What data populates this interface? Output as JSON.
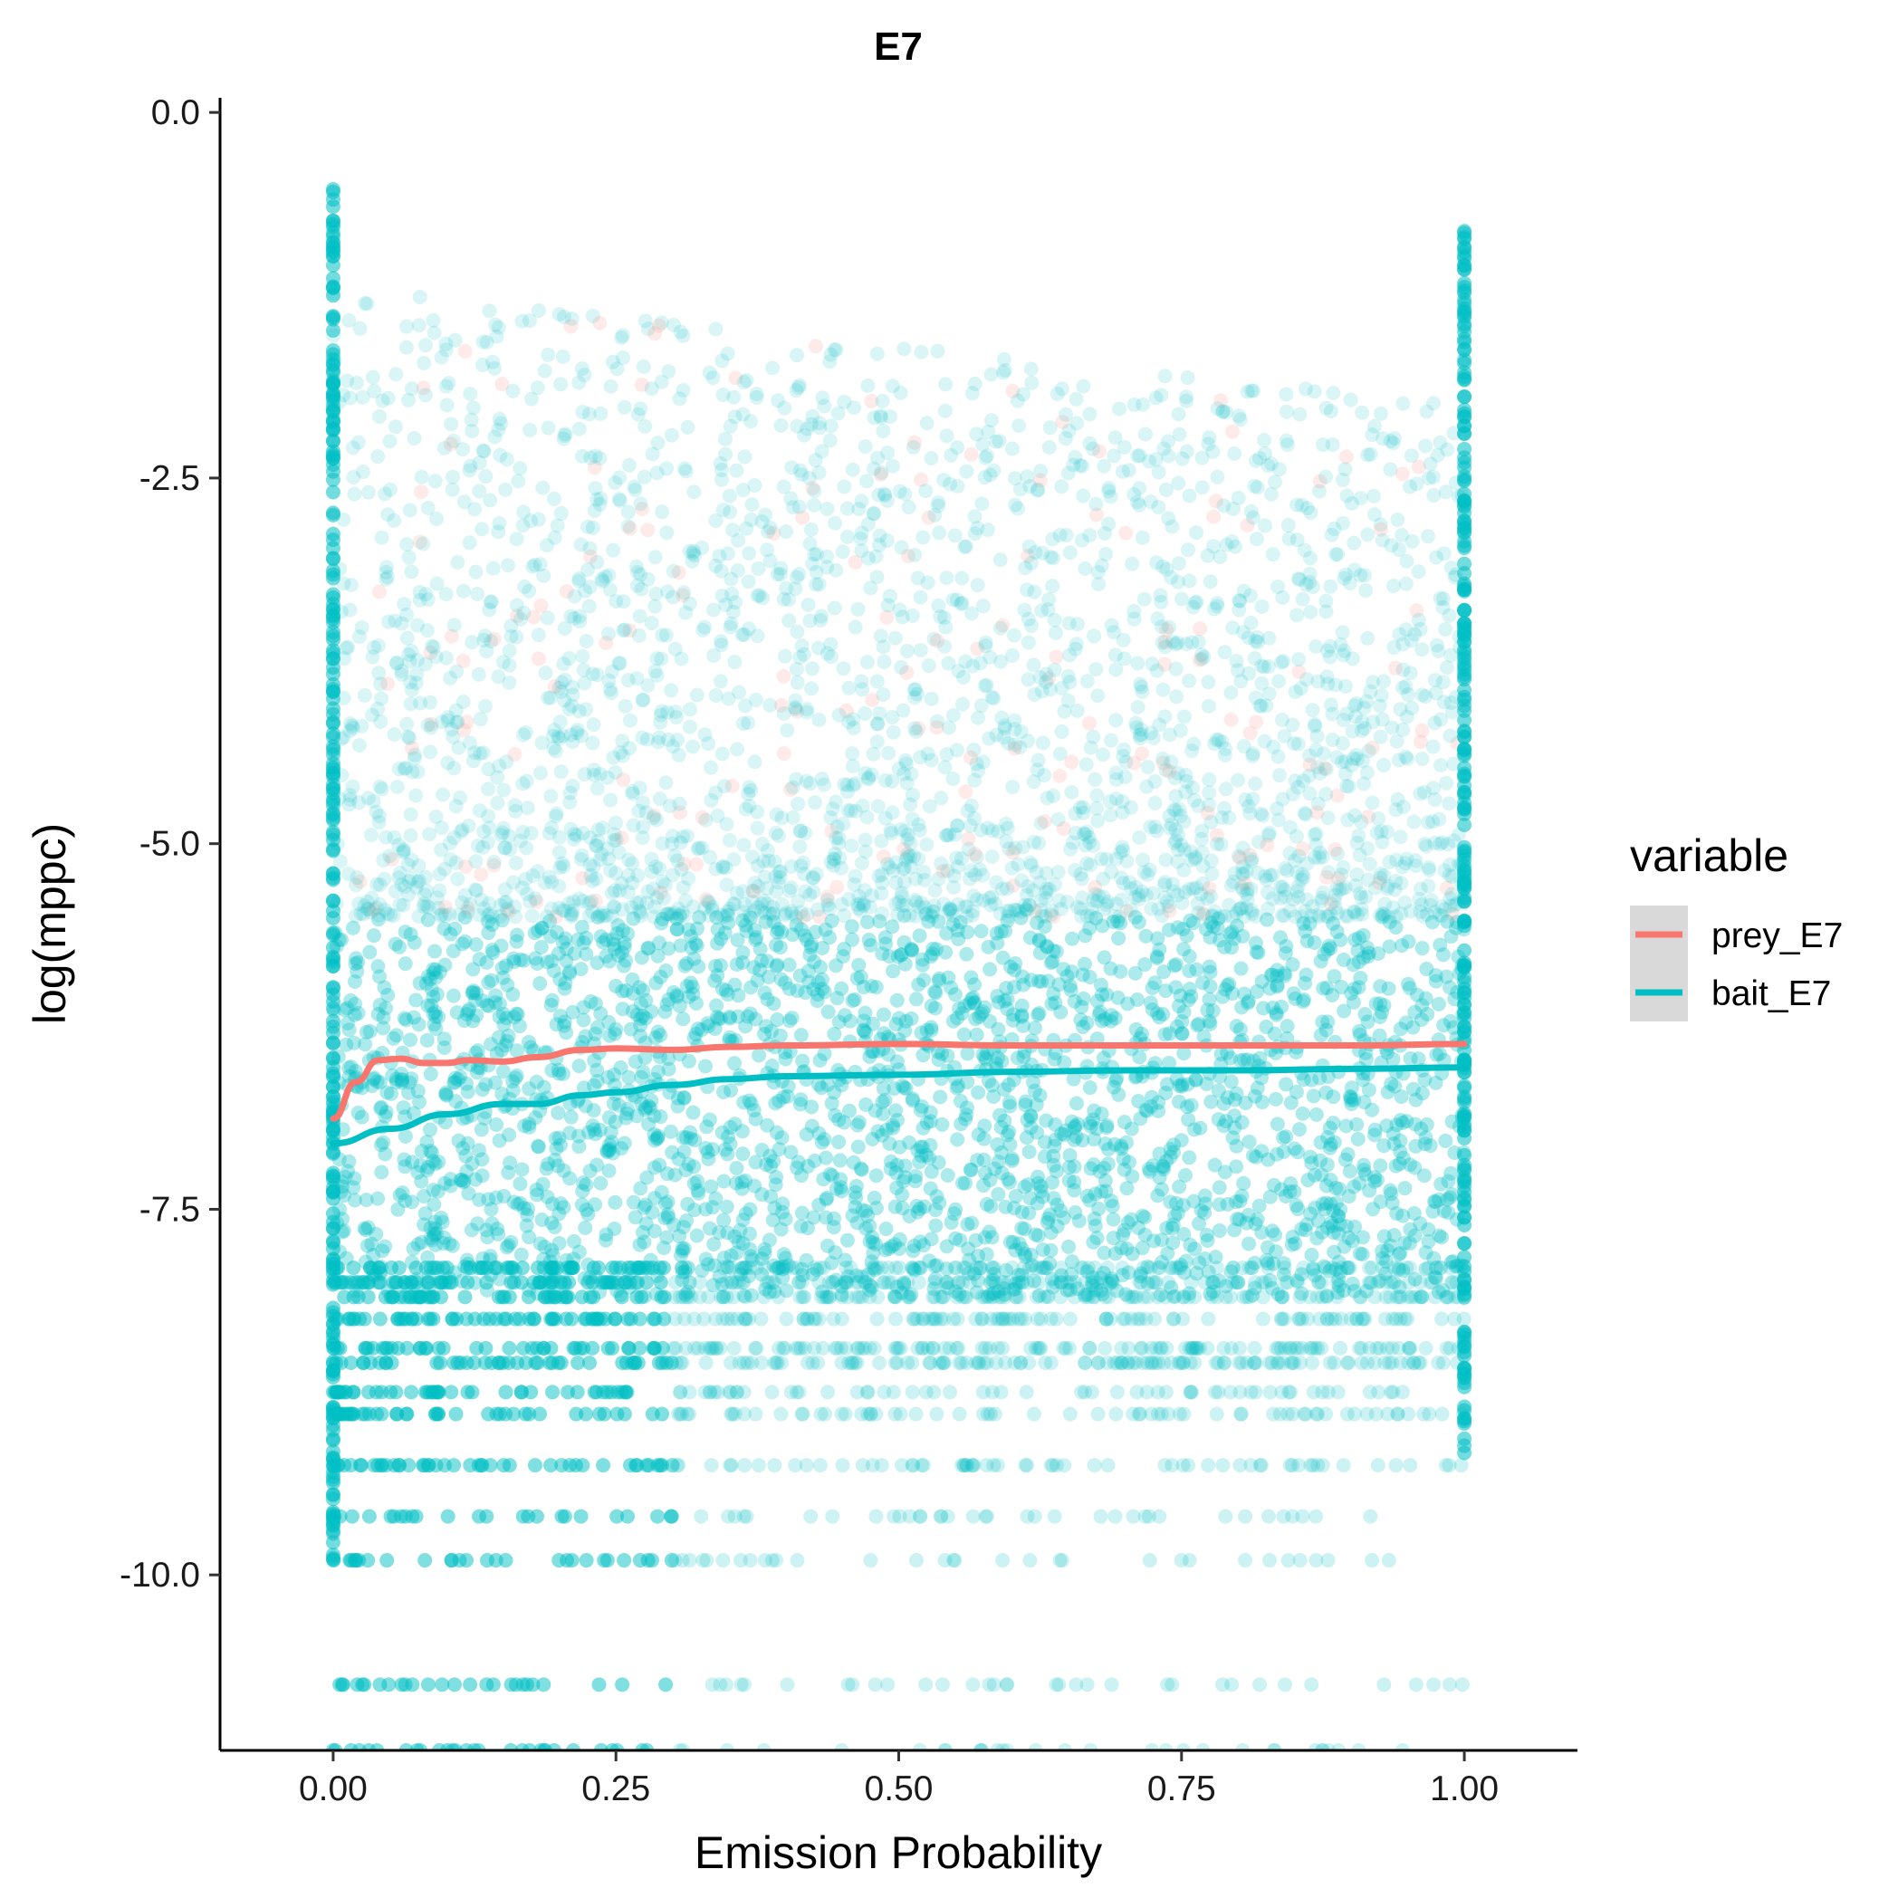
{
  "chart_data": {
    "type": "scatter",
    "title": "E7",
    "xlabel": "Emission Probability",
    "ylabel": "log(mppc)",
    "xlim": [
      -0.1,
      1.1
    ],
    "ylim": [
      -11.2,
      0.1
    ],
    "x_ticks": [
      0,
      0.25,
      0.5,
      0.75,
      1
    ],
    "x_tick_labels": [
      "0.00",
      "0.25",
      "0.50",
      "0.75",
      "1.00"
    ],
    "y_ticks": [
      0,
      -2.5,
      -5,
      -7.5,
      -10
    ],
    "y_tick_labels": [
      "0.0",
      "-2.5",
      "-5.0",
      "-7.5",
      "-10.0"
    ],
    "grid": false,
    "legend": {
      "title": "variable",
      "position": "right",
      "entries": [
        {
          "label": "prey_E7",
          "color": "#F8766D"
        },
        {
          "label": "bait_E7",
          "color": "#00BFC4"
        }
      ]
    },
    "series": [
      {
        "name": "prey_E7",
        "color": "#F8766D",
        "kind": "smooth_line",
        "x": [
          0,
          0.02,
          0.04,
          0.06,
          0.08,
          0.1,
          0.12,
          0.15,
          0.18,
          0.22,
          0.25,
          0.3,
          0.35,
          0.4,
          0.5,
          0.6,
          0.7,
          0.8,
          0.9,
          1.0
        ],
        "y": [
          -6.88,
          -6.63,
          -6.48,
          -6.47,
          -6.5,
          -6.5,
          -6.48,
          -6.49,
          -6.46,
          -6.41,
          -6.4,
          -6.41,
          -6.39,
          -6.38,
          -6.37,
          -6.38,
          -6.38,
          -6.38,
          -6.38,
          -6.37
        ]
      },
      {
        "name": "bait_E7",
        "color": "#00BFC4",
        "kind": "smooth_line",
        "x": [
          0,
          0.05,
          0.1,
          0.15,
          0.18,
          0.22,
          0.25,
          0.3,
          0.35,
          0.4,
          0.5,
          0.6,
          0.7,
          0.8,
          0.9,
          1.0
        ],
        "y": [
          -7.05,
          -6.95,
          -6.85,
          -6.78,
          -6.78,
          -6.72,
          -6.7,
          -6.65,
          -6.61,
          -6.59,
          -6.58,
          -6.56,
          -6.55,
          -6.55,
          -6.54,
          -6.53
        ]
      }
    ],
    "point_cloud": {
      "description_free": true,
      "point_alpha": 0.1,
      "dense_band_y": [
        -8.1,
        -5.5
      ],
      "discrete_levels_y": [
        -7.9,
        -8.0,
        -8.1,
        -8.25,
        -8.45,
        -8.55,
        -8.75,
        -8.9,
        -9.25,
        -9.6,
        -9.9,
        -10.75,
        -11.2
      ]
    }
  }
}
